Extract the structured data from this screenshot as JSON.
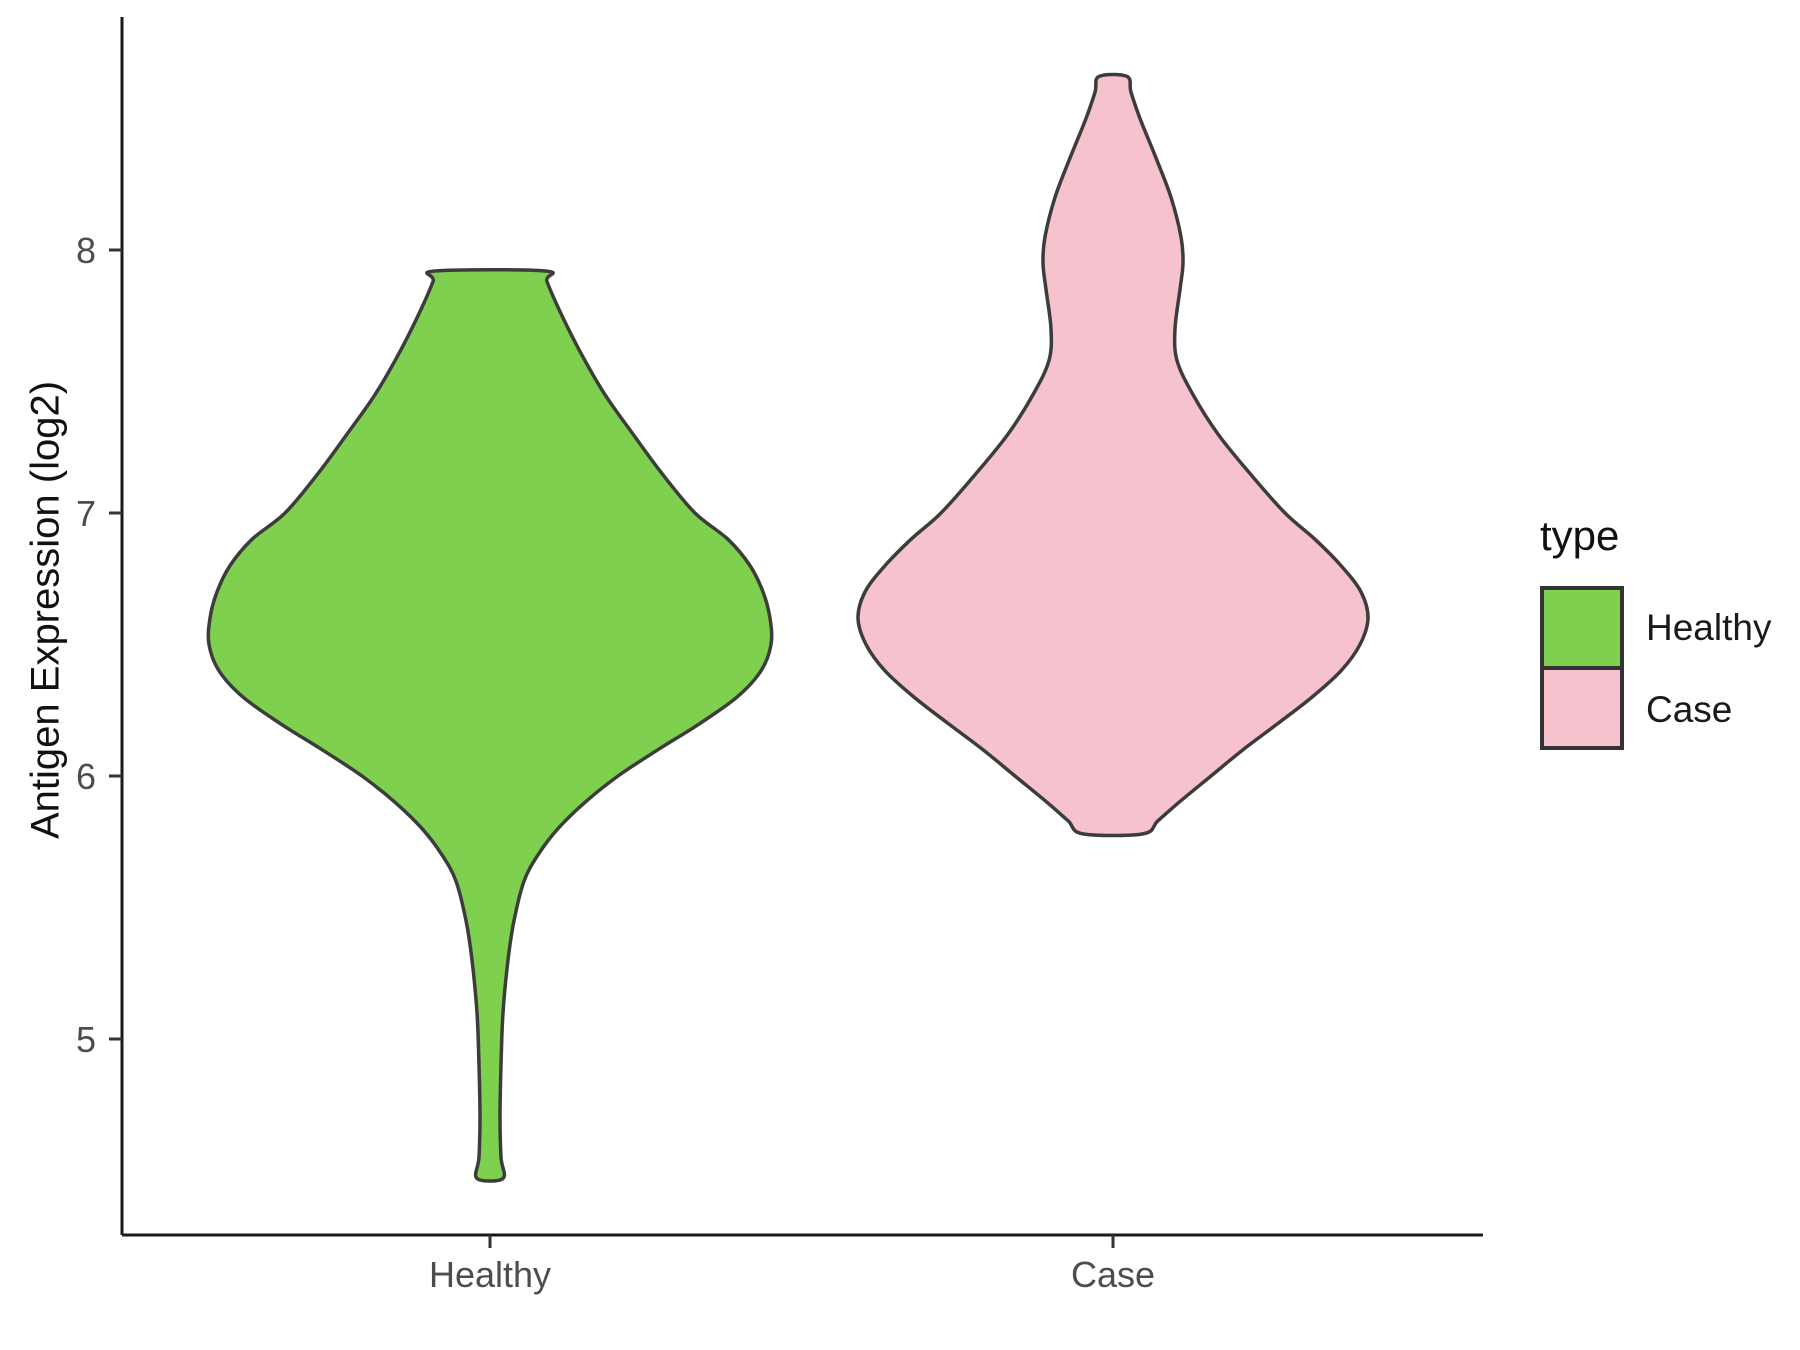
{
  "figure": {
    "background": "#FFFFFF"
  },
  "chart_data": {
    "type": "violin",
    "title": "",
    "xlabel": "",
    "ylabel": "Antigen Expression (log2)",
    "categories": [
      "Healthy",
      "Case"
    ],
    "y_ticks": [
      5,
      6,
      7,
      8
    ],
    "ylim": [
      4.25,
      8.9
    ],
    "grid": false,
    "axis_color": "#1a1a1a",
    "tick_text_color": "#4d4d4d",
    "legend": {
      "title": "type",
      "position": "right",
      "entries": [
        {
          "label": "Healthy",
          "color": "#7ED04E"
        },
        {
          "label": "Case",
          "color": "#F5C2CD"
        }
      ]
    },
    "series": [
      {
        "name": "Healthy",
        "fill": "#7ED04E",
        "stroke": "#3C3C3C",
        "y_range": [
          4.47,
          7.92
        ],
        "profile": [
          [
            7.92,
            55
          ],
          [
            7.88,
            57
          ],
          [
            7.75,
            72
          ],
          [
            7.6,
            92
          ],
          [
            7.45,
            115
          ],
          [
            7.3,
            143
          ],
          [
            7.15,
            172
          ],
          [
            7.0,
            205
          ],
          [
            6.9,
            238
          ],
          [
            6.8,
            260
          ],
          [
            6.7,
            273
          ],
          [
            6.6,
            280
          ],
          [
            6.5,
            281
          ],
          [
            6.4,
            271
          ],
          [
            6.3,
            247
          ],
          [
            6.2,
            210
          ],
          [
            6.1,
            168
          ],
          [
            6.0,
            128
          ],
          [
            5.9,
            95
          ],
          [
            5.8,
            68
          ],
          [
            5.7,
            48
          ],
          [
            5.6,
            34
          ],
          [
            5.45,
            24
          ],
          [
            5.3,
            18
          ],
          [
            5.1,
            13
          ],
          [
            4.9,
            11
          ],
          [
            4.7,
            10
          ],
          [
            4.55,
            11
          ],
          [
            4.47,
            13
          ]
        ]
      },
      {
        "name": "Case",
        "fill": "#F5C2CD",
        "stroke": "#3C3C3C",
        "y_range": [
          5.78,
          8.66
        ],
        "profile": [
          [
            8.66,
            14
          ],
          [
            8.6,
            18
          ],
          [
            8.5,
            27
          ],
          [
            8.35,
            43
          ],
          [
            8.2,
            58
          ],
          [
            8.05,
            68
          ],
          [
            7.95,
            70
          ],
          [
            7.85,
            67
          ],
          [
            7.7,
            62
          ],
          [
            7.58,
            64
          ],
          [
            7.45,
            80
          ],
          [
            7.3,
            105
          ],
          [
            7.15,
            137
          ],
          [
            7.0,
            172
          ],
          [
            6.9,
            202
          ],
          [
            6.8,
            228
          ],
          [
            6.7,
            248
          ],
          [
            6.6,
            255
          ],
          [
            6.5,
            247
          ],
          [
            6.4,
            228
          ],
          [
            6.3,
            199
          ],
          [
            6.2,
            165
          ],
          [
            6.1,
            130
          ],
          [
            6.0,
            98
          ],
          [
            5.9,
            66
          ],
          [
            5.83,
            45
          ],
          [
            5.78,
            30
          ]
        ]
      }
    ]
  }
}
